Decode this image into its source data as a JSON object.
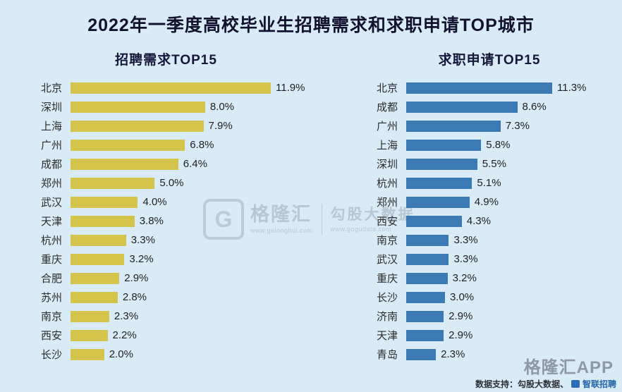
{
  "page_title": "2022年一季度高校毕业生招聘需求和求职申请TOP城市",
  "colors": {
    "background": "#d8ebf7",
    "title_text": "#12122e",
    "left_bar": "#d4c44c",
    "right_bar": "#3b7ab5"
  },
  "watermark": {
    "logo_letter": "G",
    "brand": "格隆汇",
    "brand_url": "www.gelonghui.com",
    "partner": "勾股大数据",
    "partner_url": "www.gogudata.com"
  },
  "footer": {
    "app_label": "格隆汇APP",
    "support_prefix": "数据支持：勾股大数据、",
    "support_partner": "智联招聘"
  },
  "chart_data": [
    {
      "type": "bar",
      "orientation": "horizontal",
      "title": "招聘需求TOP15",
      "categories": [
        "北京",
        "深圳",
        "上海",
        "广州",
        "成都",
        "郑州",
        "武汉",
        "天津",
        "杭州",
        "重庆",
        "合肥",
        "苏州",
        "南京",
        "西安",
        "长沙"
      ],
      "values": [
        11.9,
        8.0,
        7.9,
        6.8,
        6.4,
        5.0,
        4.0,
        3.8,
        3.3,
        3.2,
        2.9,
        2.8,
        2.3,
        2.2,
        2.0
      ],
      "unit": "%",
      "bar_color": "#d4c44c",
      "xlim": [
        0,
        12
      ],
      "grid": false,
      "legend": "none"
    },
    {
      "type": "bar",
      "orientation": "horizontal",
      "title": "求职申请TOP15",
      "categories": [
        "北京",
        "成都",
        "广州",
        "上海",
        "深圳",
        "杭州",
        "郑州",
        "西安",
        "南京",
        "武汉",
        "重庆",
        "长沙",
        "济南",
        "天津",
        "青岛"
      ],
      "values": [
        11.3,
        8.6,
        7.3,
        5.8,
        5.5,
        5.1,
        4.9,
        4.3,
        3.3,
        3.3,
        3.2,
        3.0,
        2.9,
        2.9,
        2.3
      ],
      "unit": "%",
      "bar_color": "#3b7ab5",
      "xlim": [
        0,
        12
      ],
      "grid": false,
      "legend": "none"
    }
  ]
}
